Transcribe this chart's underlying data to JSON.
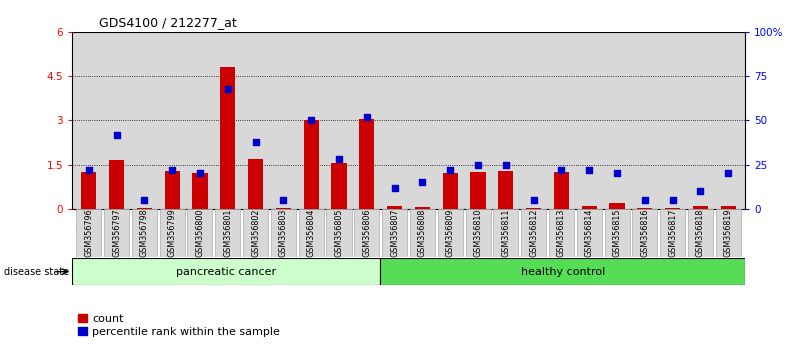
{
  "title": "GDS4100 / 212277_at",
  "samples": [
    "GSM356796",
    "GSM356797",
    "GSM356798",
    "GSM356799",
    "GSM356800",
    "GSM356801",
    "GSM356802",
    "GSM356803",
    "GSM356804",
    "GSM356805",
    "GSM356806",
    "GSM356807",
    "GSM356808",
    "GSM356809",
    "GSM356810",
    "GSM356811",
    "GSM356812",
    "GSM356813",
    "GSM356814",
    "GSM356815",
    "GSM356816",
    "GSM356817",
    "GSM356818",
    "GSM356819"
  ],
  "counts": [
    1.25,
    1.65,
    0.02,
    1.3,
    1.2,
    4.8,
    1.7,
    0.02,
    3.0,
    1.55,
    3.05,
    0.1,
    0.05,
    1.2,
    1.25,
    1.3,
    0.02,
    1.25,
    0.1,
    0.2,
    0.02,
    0.02,
    0.1,
    0.1
  ],
  "percentiles": [
    22,
    42,
    5,
    22,
    20,
    68,
    38,
    5,
    50,
    28,
    52,
    12,
    15,
    22,
    25,
    25,
    5,
    22,
    22,
    20,
    5,
    5,
    10,
    20
  ],
  "group_labels": [
    "pancreatic cancer",
    "healthy control"
  ],
  "separator_idx": 11,
  "bar_color": "#cc0000",
  "dot_color": "#0000cc",
  "ylim_left": [
    0,
    6
  ],
  "ylim_right": [
    0,
    100
  ],
  "yticks_left": [
    0,
    1.5,
    3.0,
    4.5,
    6.0
  ],
  "ytick_labels_left": [
    "0",
    "1.5",
    "3",
    "4.5",
    "6"
  ],
  "yticks_right": [
    0,
    25,
    50,
    75,
    100
  ],
  "ytick_labels_right": [
    "0",
    "25",
    "50",
    "75",
    "100%"
  ],
  "disease_state_label": "disease state",
  "legend_count_label": "count",
  "legend_pct_label": "percentile rank within the sample",
  "bg_plot": "#d8d8d8",
  "bg_fig": "#ffffff",
  "group1_color": "#ccffcc",
  "group2_color": "#55dd55"
}
